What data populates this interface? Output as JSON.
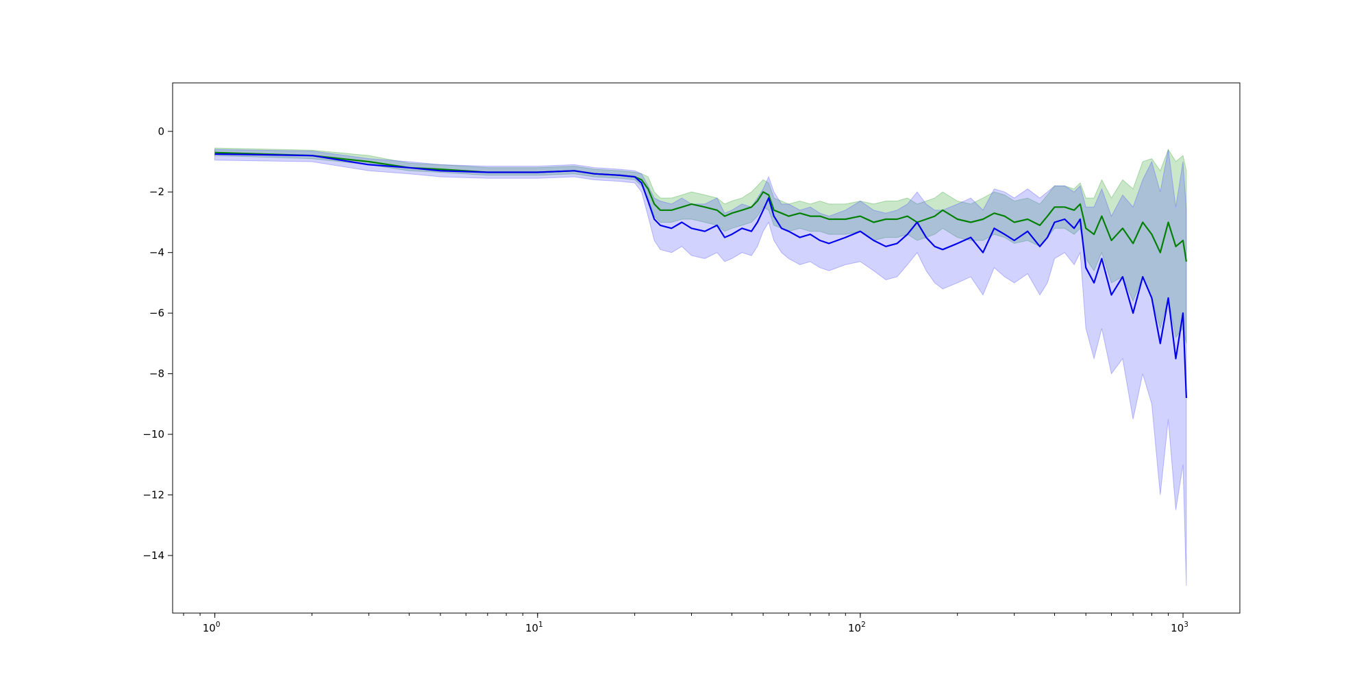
{
  "chart_data": {
    "type": "line",
    "title": "",
    "xlabel": "",
    "ylabel": "",
    "xscale": "log",
    "xlim": [
      0.74,
      1500
    ],
    "ylim": [
      -15.9,
      1.6
    ],
    "grid": false,
    "legend": "none",
    "x_ticks": [
      {
        "value": 1,
        "base": "10",
        "exp": "0"
      },
      {
        "value": 10,
        "base": "10",
        "exp": "1"
      },
      {
        "value": 100,
        "base": "10",
        "exp": "2"
      },
      {
        "value": 1000,
        "base": "10",
        "exp": "3"
      }
    ],
    "y_ticks": [
      {
        "value": 0,
        "label": "0"
      },
      {
        "value": -2,
        "label": "−2"
      },
      {
        "value": -4,
        "label": "−4"
      },
      {
        "value": -6,
        "label": "−6"
      },
      {
        "value": -8,
        "label": "−8"
      },
      {
        "value": -10,
        "label": "−10"
      },
      {
        "value": -12,
        "label": "−12"
      },
      {
        "value": -14,
        "label": "−14"
      }
    ],
    "series": [
      {
        "color": "#008000",
        "band_color": "#2ca02c",
        "band_opacity": 0.25,
        "x": [
          1,
          2,
          3,
          4,
          5,
          7,
          10,
          13,
          15,
          18,
          20,
          21,
          22,
          23,
          24,
          26,
          28,
          30,
          33,
          36,
          38,
          40,
          43,
          46,
          48,
          50,
          52,
          54,
          57,
          60,
          65,
          70,
          75,
          80,
          90,
          100,
          110,
          120,
          130,
          140,
          150,
          160,
          170,
          180,
          200,
          220,
          240,
          260,
          280,
          300,
          330,
          360,
          380,
          400,
          430,
          460,
          480,
          500,
          530,
          560,
          600,
          650,
          700,
          750,
          800,
          850,
          900,
          950,
          1000,
          1024
        ],
        "y": [
          -0.7,
          -0.8,
          -1.0,
          -1.2,
          -1.25,
          -1.35,
          -1.35,
          -1.3,
          -1.4,
          -1.45,
          -1.5,
          -1.6,
          -1.9,
          -2.4,
          -2.6,
          -2.6,
          -2.5,
          -2.4,
          -2.5,
          -2.6,
          -2.8,
          -2.7,
          -2.6,
          -2.5,
          -2.3,
          -2.0,
          -2.1,
          -2.6,
          -2.7,
          -2.8,
          -2.7,
          -2.8,
          -2.8,
          -2.9,
          -2.9,
          -2.8,
          -3.0,
          -2.9,
          -2.9,
          -2.8,
          -3.0,
          -2.9,
          -2.8,
          -2.6,
          -2.9,
          -3.0,
          -2.9,
          -2.7,
          -2.8,
          -3.0,
          -2.9,
          -3.1,
          -2.8,
          -2.5,
          -2.5,
          -2.6,
          -2.4,
          -3.2,
          -3.4,
          -2.8,
          -3.6,
          -3.2,
          -3.7,
          -3.0,
          -3.4,
          -4.0,
          -3.0,
          -3.8,
          -3.6,
          -4.3
        ],
        "lower": [
          -0.8,
          -0.9,
          -1.1,
          -1.3,
          -1.35,
          -1.45,
          -1.45,
          -1.4,
          -1.5,
          -1.55,
          -1.6,
          -1.8,
          -2.2,
          -2.8,
          -3.0,
          -3.0,
          -2.9,
          -2.9,
          -3.0,
          -3.1,
          -3.3,
          -3.2,
          -3.1,
          -3.0,
          -2.8,
          -2.5,
          -2.6,
          -3.1,
          -3.2,
          -3.3,
          -3.2,
          -3.3,
          -3.3,
          -3.4,
          -3.4,
          -3.3,
          -3.6,
          -3.5,
          -3.5,
          -3.4,
          -3.6,
          -3.5,
          -3.4,
          -3.2,
          -3.5,
          -3.6,
          -3.6,
          -3.4,
          -3.5,
          -3.7,
          -3.6,
          -3.8,
          -3.5,
          -3.2,
          -3.2,
          -3.4,
          -3.2,
          -4.2,
          -4.6,
          -4.0,
          -5.0,
          -4.8,
          -5.6,
          -4.8,
          -5.5,
          -6.5,
          -5.5,
          -6.8,
          -6.5,
          -7.0
        ],
        "upper": [
          -0.55,
          -0.62,
          -0.8,
          -1.05,
          -1.1,
          -1.2,
          -1.2,
          -1.15,
          -1.25,
          -1.3,
          -1.35,
          -1.4,
          -1.5,
          -2.0,
          -2.2,
          -2.2,
          -2.1,
          -2.0,
          -2.1,
          -2.2,
          -2.4,
          -2.3,
          -2.2,
          -2.0,
          -1.8,
          -1.6,
          -1.7,
          -2.2,
          -2.3,
          -2.4,
          -2.3,
          -2.4,
          -2.3,
          -2.4,
          -2.4,
          -2.3,
          -2.4,
          -2.3,
          -2.3,
          -2.2,
          -2.4,
          -2.3,
          -2.2,
          -2.0,
          -2.3,
          -2.4,
          -2.2,
          -2.0,
          -2.1,
          -2.3,
          -2.2,
          -2.4,
          -2.1,
          -1.8,
          -1.8,
          -1.9,
          -1.7,
          -2.2,
          -2.2,
          -1.6,
          -2.2,
          -1.6,
          -1.9,
          -1.0,
          -0.9,
          -1.3,
          -0.6,
          -1.0,
          -0.8,
          -1.3
        ]
      },
      {
        "color": "#0000ee",
        "band_color": "#4b4bff",
        "band_opacity": 0.25,
        "x": [
          1,
          2,
          3,
          4,
          5,
          7,
          10,
          13,
          15,
          18,
          20,
          21,
          22,
          23,
          24,
          26,
          28,
          30,
          33,
          36,
          38,
          40,
          43,
          46,
          48,
          50,
          52,
          54,
          57,
          60,
          65,
          70,
          75,
          80,
          90,
          100,
          110,
          120,
          130,
          140,
          150,
          160,
          170,
          180,
          200,
          220,
          240,
          260,
          280,
          300,
          330,
          360,
          380,
          400,
          430,
          460,
          480,
          500,
          530,
          560,
          600,
          650,
          700,
          750,
          800,
          850,
          900,
          950,
          1000,
          1024
        ],
        "y": [
          -0.75,
          -0.8,
          -1.1,
          -1.2,
          -1.3,
          -1.35,
          -1.35,
          -1.3,
          -1.4,
          -1.45,
          -1.5,
          -1.7,
          -2.3,
          -2.9,
          -3.1,
          -3.2,
          -3.0,
          -3.2,
          -3.3,
          -3.1,
          -3.5,
          -3.4,
          -3.2,
          -3.3,
          -3.0,
          -2.6,
          -2.2,
          -2.8,
          -3.2,
          -3.3,
          -3.5,
          -3.4,
          -3.6,
          -3.7,
          -3.5,
          -3.3,
          -3.6,
          -3.8,
          -3.7,
          -3.4,
          -3.0,
          -3.5,
          -3.8,
          -3.9,
          -3.7,
          -3.5,
          -4.0,
          -3.2,
          -3.4,
          -3.6,
          -3.3,
          -3.8,
          -3.5,
          -3.0,
          -2.9,
          -3.2,
          -2.9,
          -4.5,
          -5.0,
          -4.2,
          -5.4,
          -4.8,
          -6.0,
          -4.8,
          -5.5,
          -7.0,
          -5.5,
          -7.5,
          -6.0,
          -8.8
        ],
        "lower": [
          -0.95,
          -1.0,
          -1.3,
          -1.4,
          -1.5,
          -1.55,
          -1.55,
          -1.5,
          -1.6,
          -1.65,
          -1.7,
          -2.0,
          -2.8,
          -3.6,
          -3.9,
          -4.0,
          -3.8,
          -4.1,
          -4.2,
          -4.0,
          -4.3,
          -4.2,
          -4.0,
          -4.1,
          -3.8,
          -3.3,
          -3.0,
          -3.6,
          -4.0,
          -4.2,
          -4.4,
          -4.3,
          -4.5,
          -4.6,
          -4.4,
          -4.3,
          -4.6,
          -4.9,
          -4.8,
          -4.4,
          -4.0,
          -4.6,
          -5.0,
          -5.2,
          -5.0,
          -4.8,
          -5.4,
          -4.5,
          -4.8,
          -5.0,
          -4.7,
          -5.4,
          -5.0,
          -4.2,
          -4.0,
          -4.4,
          -4.0,
          -6.5,
          -7.5,
          -6.5,
          -8.0,
          -7.5,
          -9.5,
          -8.0,
          -9.0,
          -12.0,
          -9.5,
          -12.5,
          -11.0,
          -15.0
        ],
        "upper": [
          -0.6,
          -0.65,
          -0.9,
          -1.0,
          -1.1,
          -1.15,
          -1.15,
          -1.1,
          -1.2,
          -1.25,
          -1.3,
          -1.4,
          -1.8,
          -2.2,
          -2.3,
          -2.4,
          -2.2,
          -2.4,
          -2.4,
          -2.2,
          -2.7,
          -2.6,
          -2.4,
          -2.5,
          -2.2,
          -1.9,
          -1.5,
          -2.0,
          -2.4,
          -2.4,
          -2.6,
          -2.5,
          -2.7,
          -2.8,
          -2.6,
          -2.3,
          -2.6,
          -2.7,
          -2.6,
          -2.4,
          -2.0,
          -2.4,
          -2.6,
          -2.6,
          -2.4,
          -2.2,
          -2.6,
          -1.9,
          -2.0,
          -2.2,
          -1.9,
          -2.2,
          -2.0,
          -1.8,
          -1.8,
          -2.0,
          -1.8,
          -2.5,
          -2.5,
          -1.9,
          -2.8,
          -2.1,
          -2.5,
          -1.6,
          -1.0,
          -2.0,
          -0.6,
          -2.5,
          -1.0,
          -2.6
        ]
      }
    ]
  }
}
